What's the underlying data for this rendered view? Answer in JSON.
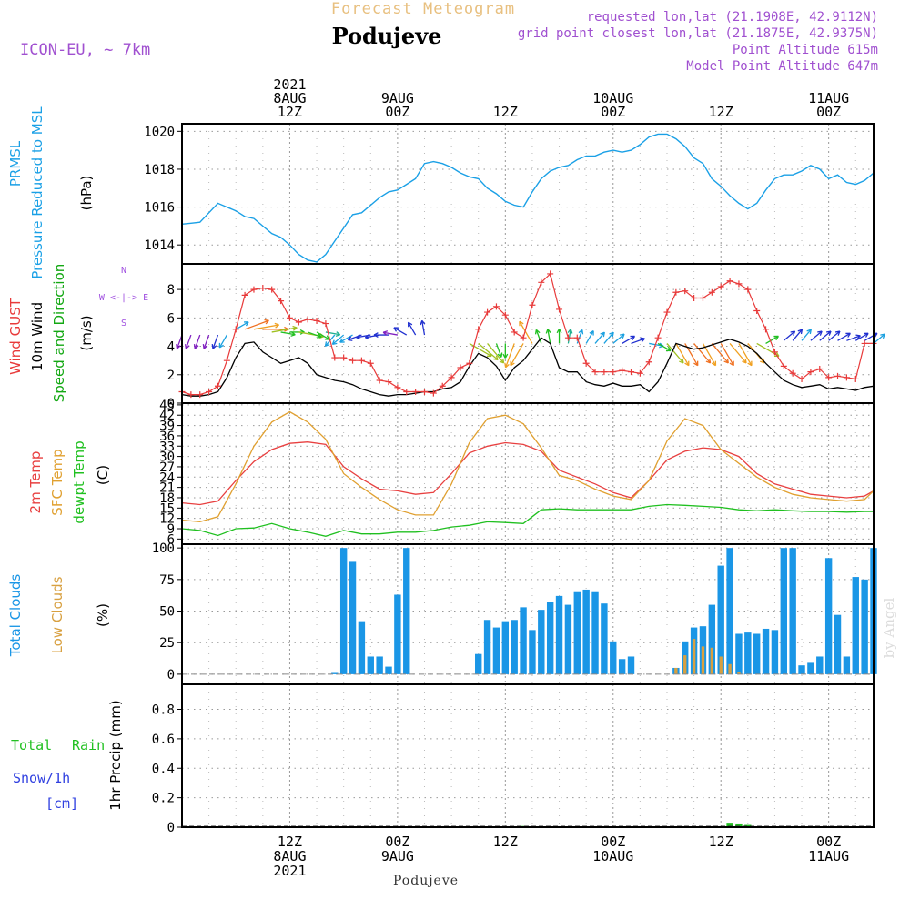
{
  "header": {
    "faded_title": "Forecast Meteogram",
    "location": "Podujeve",
    "model": "ICON-EU, ~ 7km",
    "requested": "requested lon,lat (21.1908E, 42.9112N)",
    "grid_point": "grid point closest lon,lat (21.1875E, 42.9375N)",
    "point_altitude": "Point Altitude 615m",
    "model_altitude": "Model Point Altitude 647m",
    "footer_location": "Podujeve",
    "watermark": "by Angel"
  },
  "colors": {
    "pressure": "#1aa0e6",
    "gust": "#e83a3a",
    "wind": "#000000",
    "wind_dir_label": "#13a813",
    "t2m": "#e84040",
    "sfc": "#e0a030",
    "dewpt": "#20c020",
    "total_clouds": "#1a96e6",
    "low_clouds": "#d8a040",
    "rain": "#20c020",
    "snow": "#3040e0",
    "compass": "#a050e0",
    "header_info": "#a050d0",
    "faded_title": "#e8c080"
  },
  "time_axis": {
    "top_labels": [
      {
        "h": 12,
        "lines": [
          "2021",
          "8AUG",
          "12Z"
        ]
      },
      {
        "h": 24,
        "lines": [
          "9AUG",
          "00Z"
        ]
      },
      {
        "h": 36,
        "lines": [
          "12Z"
        ]
      },
      {
        "h": 48,
        "lines": [
          "10AUG",
          "00Z"
        ]
      },
      {
        "h": 60,
        "lines": [
          "12Z"
        ]
      },
      {
        "h": 72,
        "lines": [
          "11AUG",
          "00Z"
        ]
      }
    ],
    "bottom_labels": [
      {
        "h": 12,
        "lines": [
          "12Z",
          "8AUG",
          "2021"
        ]
      },
      {
        "h": 24,
        "lines": [
          "00Z",
          "9AUG"
        ]
      },
      {
        "h": 36,
        "lines": [
          "12Z"
        ]
      },
      {
        "h": 48,
        "lines": [
          "00Z",
          "10AUG"
        ]
      },
      {
        "h": 60,
        "lines": [
          "12Z"
        ]
      },
      {
        "h": 72,
        "lines": [
          "00Z",
          "11AUG"
        ]
      }
    ],
    "x_range_hours": [
      0,
      77
    ]
  },
  "chart_data": [
    {
      "type": "line",
      "panel": "pressure",
      "y_labels": [
        "PRMSL",
        "Pressure Reduced to MSL",
        "(hPa)"
      ],
      "ylim": [
        1013,
        1020.4
      ],
      "yticks": [
        1014,
        1016,
        1018,
        1020
      ],
      "series": [
        {
          "x": [
            0,
            1,
            2,
            3,
            4,
            5,
            6,
            7,
            8,
            9,
            10,
            11,
            12,
            13,
            14,
            15,
            16,
            17,
            18,
            19,
            20,
            21,
            22,
            23,
            24,
            25,
            26,
            27,
            28,
            29,
            30,
            31,
            32,
            33,
            34,
            35,
            36,
            37,
            38,
            39,
            40,
            41,
            42,
            43,
            44,
            45,
            46,
            47,
            48,
            49,
            50,
            51,
            52,
            53,
            54,
            55,
            56,
            57,
            58,
            59,
            60,
            61,
            62,
            63,
            64,
            65,
            66,
            67,
            68,
            69,
            70,
            71,
            72,
            73,
            74,
            75,
            76,
            77
          ],
          "values": [
            1015.1,
            1015.15,
            1015.2,
            1015.7,
            1016.2,
            1016.0,
            1015.8,
            1015.5,
            1015.4,
            1015.0,
            1014.6,
            1014.4,
            1014.0,
            1013.5,
            1013.2,
            1013.1,
            1013.5,
            1014.2,
            1014.9,
            1015.6,
            1015.7,
            1016.1,
            1016.5,
            1016.8,
            1016.9,
            1017.2,
            1017.5,
            1018.3,
            1018.4,
            1018.3,
            1018.1,
            1017.8,
            1017.6,
            1017.5,
            1017.0,
            1016.7,
            1016.3,
            1016.1,
            1016.0,
            1016.8,
            1017.5,
            1017.9,
            1018.1,
            1018.2,
            1018.5,
            1018.7,
            1018.7,
            1018.9,
            1019.0,
            1018.9,
            1019.0,
            1019.3,
            1019.7,
            1019.85,
            1019.85,
            1019.6,
            1019.2,
            1018.6,
            1018.3,
            1017.5,
            1017.1,
            1016.6,
            1016.2,
            1015.9,
            1016.2,
            1016.9,
            1017.5,
            1017.7,
            1017.7,
            1017.9,
            1018.2,
            1018.0,
            1017.5,
            1017.7,
            1017.3,
            1017.2,
            1017.4,
            1017.8
          ]
        }
      ]
    },
    {
      "type": "line",
      "panel": "wind",
      "y_labels": [
        "Wind GUST",
        "10m Wind",
        "Speed and Direction",
        "(m/s)"
      ],
      "ylim": [
        0,
        9.8
      ],
      "yticks": [
        0,
        2,
        4,
        6,
        8
      ],
      "compass": [
        "N",
        "W <-|-> E",
        "S"
      ],
      "series": [
        {
          "name": "Wind GUST",
          "x": [
            0,
            1,
            2,
            3,
            4,
            5,
            6,
            7,
            8,
            9,
            10,
            11,
            12,
            13,
            14,
            15,
            16,
            17,
            18,
            19,
            20,
            21,
            22,
            23,
            24,
            25,
            26,
            27,
            28,
            29,
            30,
            31,
            32,
            33,
            34,
            35,
            36,
            37,
            38,
            39,
            40,
            41,
            42,
            43,
            44,
            45,
            46,
            47,
            48,
            49,
            50,
            51,
            52,
            53,
            54,
            55,
            56,
            57,
            58,
            59,
            60,
            61,
            62,
            63,
            64,
            65,
            66,
            67,
            68,
            69,
            70,
            71,
            72,
            73,
            74,
            75,
            76,
            77
          ],
          "values": [
            0.8,
            0.6,
            0.6,
            0.8,
            1.2,
            3.0,
            5.2,
            7.6,
            8.0,
            8.1,
            8.0,
            7.2,
            6.0,
            5.7,
            5.9,
            5.8,
            5.6,
            3.2,
            3.2,
            3.0,
            3.0,
            2.8,
            1.6,
            1.5,
            1.1,
            0.8,
            0.8,
            0.8,
            0.7,
            1.2,
            1.8,
            2.5,
            2.8,
            5.2,
            6.4,
            6.8,
            6.2,
            5.0,
            4.6,
            6.9,
            8.5,
            9.1,
            6.6,
            4.6,
            4.6,
            2.8,
            2.2,
            2.2,
            2.2,
            2.3,
            2.2,
            2.1,
            2.9,
            4.6,
            6.4,
            7.8,
            7.9,
            7.4,
            7.4,
            7.8,
            8.2,
            8.6,
            8.4,
            8.0,
            6.5,
            5.2,
            3.6,
            2.6,
            2.1,
            1.7,
            2.2,
            2.4,
            1.8,
            1.9,
            1.8,
            1.7,
            4.2,
            4.2
          ]
        },
        {
          "name": "10m Wind",
          "x": [
            0,
            1,
            2,
            3,
            4,
            5,
            6,
            7,
            8,
            9,
            10,
            11,
            12,
            13,
            14,
            15,
            16,
            17,
            18,
            19,
            20,
            21,
            22,
            23,
            24,
            25,
            26,
            27,
            28,
            29,
            30,
            31,
            32,
            33,
            34,
            35,
            36,
            37,
            38,
            39,
            40,
            41,
            42,
            43,
            44,
            45,
            46,
            47,
            48,
            49,
            50,
            51,
            52,
            53,
            54,
            55,
            56,
            57,
            58,
            59,
            60,
            61,
            62,
            63,
            64,
            65,
            66,
            67,
            68,
            69,
            70,
            71,
            72,
            73,
            74,
            75,
            76,
            77
          ],
          "values": [
            0.6,
            0.5,
            0.5,
            0.6,
            0.8,
            1.8,
            3.2,
            4.2,
            4.3,
            3.6,
            3.2,
            2.8,
            3.0,
            3.2,
            2.8,
            2.0,
            1.8,
            1.6,
            1.5,
            1.3,
            1.0,
            0.8,
            0.6,
            0.5,
            0.6,
            0.6,
            0.7,
            0.8,
            0.8,
            1.0,
            1.1,
            1.5,
            2.6,
            3.5,
            3.2,
            2.6,
            1.6,
            2.5,
            3.0,
            3.8,
            4.6,
            4.2,
            2.5,
            2.2,
            2.2,
            1.5,
            1.3,
            1.2,
            1.4,
            1.2,
            1.2,
            1.3,
            0.8,
            1.5,
            2.8,
            4.2,
            4.0,
            3.8,
            3.9,
            4.1,
            4.3,
            4.5,
            4.3,
            4.0,
            3.5,
            2.8,
            2.2,
            1.6,
            1.3,
            1.1,
            1.2,
            1.3,
            1.0,
            1.1,
            1.0,
            0.9,
            1.1,
            1.2
          ]
        }
      ]
    },
    {
      "type": "line",
      "panel": "temperature",
      "y_labels": [
        "2m Temp",
        "SFC Temp",
        "dewpt Temp",
        "(C)"
      ],
      "ylim": [
        4.5,
        45.5
      ],
      "yticks": [
        6,
        9,
        12,
        15,
        18,
        21,
        24,
        27,
        30,
        33,
        36,
        39,
        42,
        45
      ],
      "series": [
        {
          "name": "2m Temp",
          "x": [
            0,
            2,
            4,
            6,
            8,
            10,
            12,
            14,
            16,
            18,
            20,
            22,
            24,
            26,
            28,
            30,
            32,
            34,
            36,
            38,
            40,
            42,
            44,
            46,
            48,
            50,
            52,
            54,
            56,
            58,
            60,
            62,
            64,
            66,
            68,
            70,
            72,
            74,
            76,
            77
          ],
          "values": [
            16.5,
            16.0,
            17.0,
            23.0,
            28.5,
            32.0,
            33.8,
            34.2,
            33.5,
            27.0,
            23.5,
            20.5,
            20.0,
            19.0,
            19.5,
            25.0,
            31.0,
            33.0,
            34.0,
            33.5,
            31.5,
            26.0,
            24.0,
            22.0,
            19.5,
            18.0,
            23.0,
            29.0,
            31.5,
            32.5,
            32.0,
            30.0,
            25.0,
            22.0,
            20.5,
            19.0,
            18.5,
            18.0,
            18.5,
            20.0
          ]
        },
        {
          "name": "SFC Temp",
          "x": [
            0,
            2,
            4,
            6,
            8,
            10,
            12,
            14,
            16,
            18,
            20,
            22,
            24,
            26,
            28,
            30,
            32,
            34,
            36,
            38,
            40,
            42,
            44,
            46,
            48,
            50,
            52,
            54,
            56,
            58,
            60,
            62,
            64,
            66,
            68,
            70,
            72,
            74,
            76,
            77
          ],
          "values": [
            11.5,
            11.0,
            12.5,
            22.0,
            33.0,
            40.0,
            43.0,
            40.0,
            35.0,
            25.0,
            21.0,
            17.5,
            14.5,
            13.0,
            13.0,
            22.0,
            34.0,
            41.0,
            42.0,
            39.5,
            32.5,
            24.5,
            23.0,
            20.5,
            18.5,
            17.5,
            23.0,
            34.5,
            41.0,
            39.0,
            32.0,
            28.0,
            24.0,
            21.0,
            19.0,
            18.0,
            17.5,
            17.0,
            17.5,
            20.0
          ]
        },
        {
          "name": "dewpt Temp",
          "x": [
            0,
            2,
            4,
            6,
            8,
            10,
            12,
            14,
            16,
            18,
            20,
            22,
            24,
            26,
            28,
            30,
            32,
            34,
            36,
            38,
            40,
            42,
            44,
            46,
            48,
            50,
            52,
            54,
            56,
            58,
            60,
            62,
            64,
            66,
            68,
            70,
            72,
            74,
            76,
            77
          ],
          "values": [
            9.0,
            8.5,
            7.0,
            9.0,
            9.2,
            10.5,
            9.0,
            8.0,
            6.8,
            8.5,
            7.5,
            7.5,
            8.0,
            8.0,
            8.5,
            9.5,
            10.0,
            11.0,
            10.8,
            10.5,
            14.5,
            14.8,
            14.5,
            14.5,
            14.5,
            14.5,
            15.5,
            16.0,
            15.8,
            15.5,
            15.2,
            14.5,
            14.2,
            14.5,
            14.2,
            14.0,
            14.0,
            13.8,
            14.0,
            14.0
          ]
        }
      ]
    },
    {
      "type": "bar",
      "panel": "clouds",
      "y_labels": [
        "Total Clouds",
        "Low Clouds",
        "(%)"
      ],
      "ylim": [
        -8,
        103
      ],
      "yticks": [
        0,
        25,
        50,
        75,
        100
      ],
      "series": [
        {
          "name": "Total Clouds",
          "x": [
            17,
            18,
            19,
            20,
            21,
            22,
            23,
            24,
            25,
            33,
            34,
            35,
            36,
            37,
            38,
            39,
            40,
            41,
            42,
            43,
            44,
            45,
            46,
            47,
            48,
            49,
            50,
            55,
            56,
            57,
            58,
            59,
            60,
            61,
            62,
            63,
            64,
            65,
            66,
            67,
            68,
            69,
            70,
            71,
            72,
            73,
            74,
            75,
            76,
            77
          ],
          "values": [
            1,
            100,
            89,
            42,
            14,
            14,
            6,
            63,
            100,
            16,
            43,
            37,
            42,
            43,
            53,
            35,
            51,
            57,
            62,
            55,
            65,
            67,
            65,
            56,
            26,
            12,
            14,
            5,
            26,
            37,
            38,
            55,
            86,
            100,
            32,
            33,
            32,
            36,
            35,
            100,
            100,
            7,
            9,
            14,
            92,
            47,
            14,
            77,
            75,
            100
          ]
        },
        {
          "name": "Low Clouds",
          "x": [
            55,
            56,
            57,
            58,
            59,
            60,
            61,
            62
          ],
          "values": [
            5,
            15,
            28,
            22,
            21,
            14,
            8,
            2
          ]
        }
      ]
    },
    {
      "type": "bar",
      "panel": "precip",
      "y_labels": [
        "1hr Precip (mm)"
      ],
      "legend": [
        "Total",
        "Rain",
        "Snow/1h",
        "[cm]"
      ],
      "ylim": [
        0,
        0.97
      ],
      "yticks": [
        0,
        0.2,
        0.4,
        0.6,
        0.8
      ],
      "series": [
        {
          "name": "Rain",
          "x": [
            37,
            38,
            61,
            62,
            63
          ],
          "values": [
            0.005,
            0.008,
            0.03,
            0.025,
            0.015
          ]
        }
      ]
    }
  ]
}
